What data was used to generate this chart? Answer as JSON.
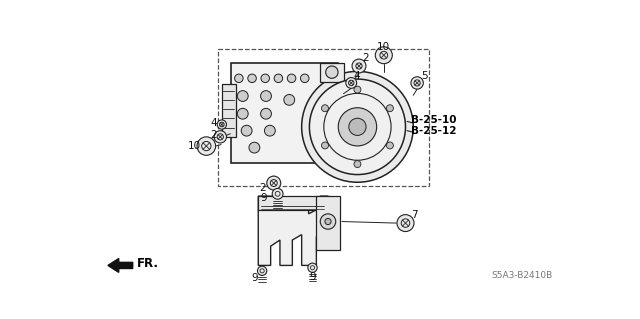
{
  "bg_color": "#ffffff",
  "fig_width": 6.4,
  "fig_height": 3.19,
  "dpi": 100,
  "title_code": "S5A3-B2410B",
  "line_color": "#222222",
  "border_color": "#555555",
  "label_color": "#111111",
  "bold_color": "#000000",
  "gray_color": "#777777",
  "part_labels": {
    "10_top": [
      0.605,
      0.935,
      "10"
    ],
    "2_top": [
      0.56,
      0.878,
      "2"
    ],
    "4_top": [
      0.548,
      0.808,
      "4"
    ],
    "5_right": [
      0.668,
      0.76,
      "5"
    ],
    "10_left": [
      0.232,
      0.558,
      "10"
    ],
    "4_left": [
      0.298,
      0.62,
      "4"
    ],
    "2_left": [
      0.298,
      0.58,
      "2"
    ],
    "2_bot": [
      0.388,
      0.415,
      "2"
    ],
    "9_mid": [
      0.385,
      0.468,
      "9"
    ],
    "9_brl": [
      0.345,
      0.148,
      "9"
    ],
    "9_brr": [
      0.485,
      0.148,
      "9"
    ],
    "7_br": [
      0.665,
      0.218,
      "7"
    ]
  },
  "bold_labels": {
    "b2510": [
      0.7,
      0.545,
      "B-25-10"
    ],
    "b2512": [
      0.7,
      0.498,
      "B-25-12"
    ]
  }
}
